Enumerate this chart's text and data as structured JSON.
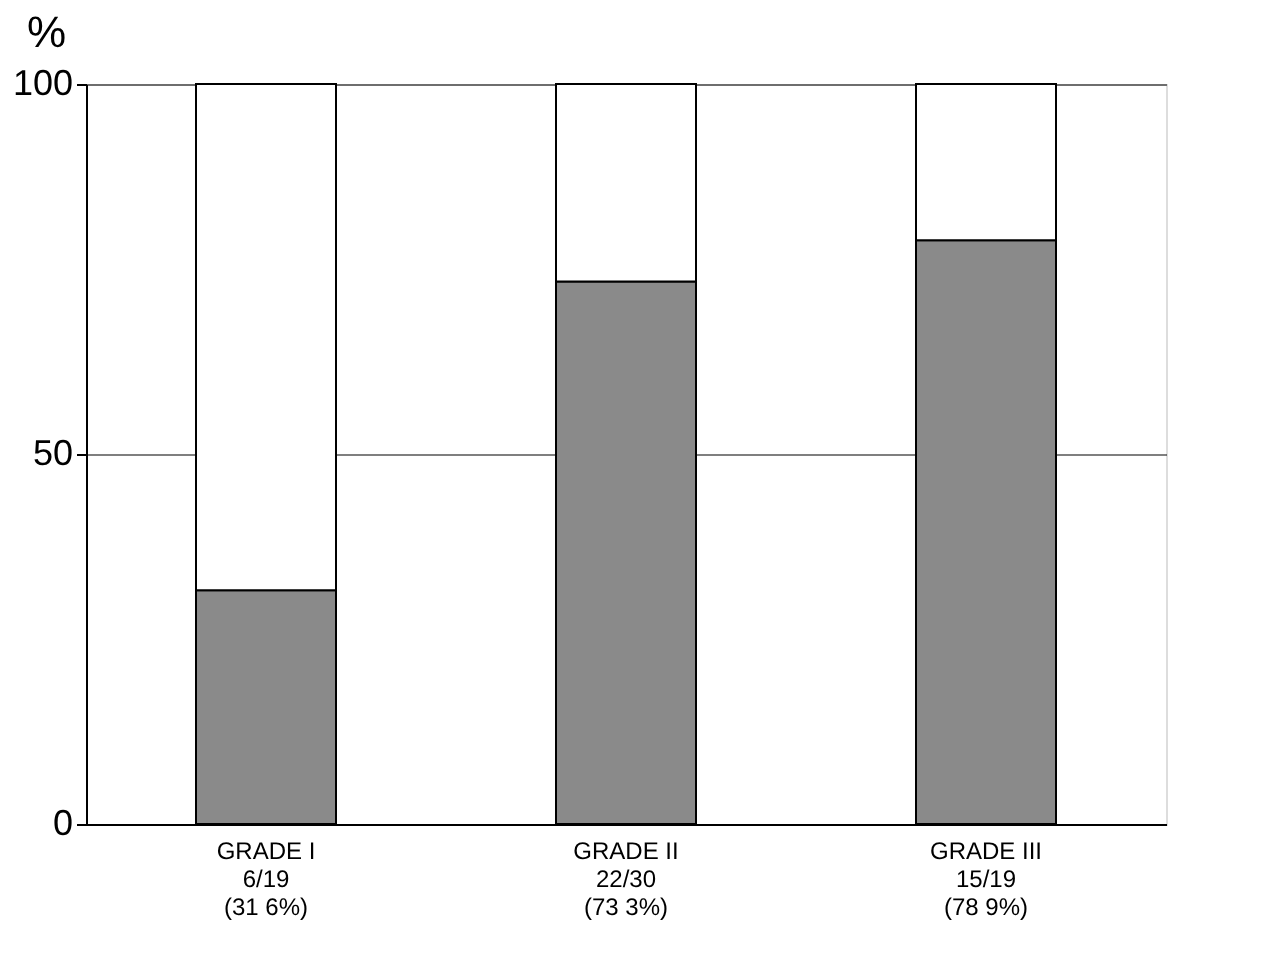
{
  "chart_data": {
    "type": "bar",
    "stacked": true,
    "ylabel": "%",
    "categories": [
      "GRADE I\n6/19\n(31 6%)",
      "GRADE II\n22/30\n(73 3%)",
      "GRADE III\n15/19\n(78 9%)"
    ],
    "series": [
      {
        "color": "#8a8a8a",
        "values": [
          31.6,
          73.3,
          78.9
        ]
      },
      {
        "color": "#ffffff",
        "values": [
          68.4,
          26.7,
          21.1
        ]
      }
    ],
    "ylim": [
      0,
      100
    ],
    "yticks": [
      0,
      50,
      100
    ],
    "grid": "y",
    "legend": false
  }
}
